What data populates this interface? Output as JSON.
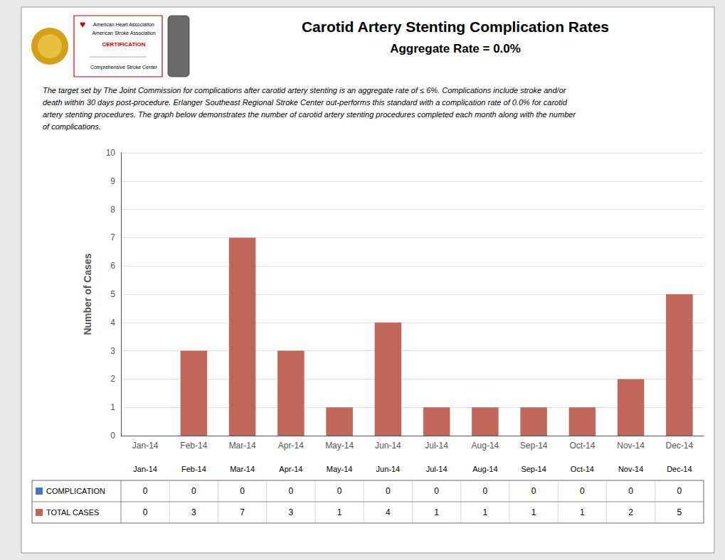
{
  "chart_data": {
    "type": "bar",
    "title": "Carotid Artery Stenting Complication Rates",
    "subtitle": "Aggregate Rate = 0.0%",
    "annotations": [
      "The target set by The Joint Commission for complications after carotid artery stenting is an aggregate rate of ≤ 6%. Complications include stroke and/or\ndeath within 30 days post-procedure. Erlanger Southeast Regional Stroke Center out-performs this standard with a complication rate of 0.0% for carotid\nartery stenting procedures. The graph below demonstrates the number of carotid artery stenting procedures completed each month along with the number\nof complications.",
      "♥",
      "American Heart Association",
      "American Stroke Association",
      "CERTIFICATION",
      "Comprehensive Stroke Center"
    ],
    "categories": [
      "Jan-14",
      "Feb-14",
      "Mar-14",
      "Apr-14",
      "May-14",
      "Jun-14",
      "Jul-14",
      "Aug-14",
      "Sep-14",
      "Oct-14",
      "Nov-14",
      "Dec-14"
    ],
    "values": [
      0,
      3,
      7,
      3,
      1,
      4,
      1,
      1,
      1,
      1,
      2,
      5
    ],
    "color": "#c0665a",
    "ylabel": "Number of Cases",
    "ylim": [
      0,
      10
    ],
    "yticks": [
      0,
      1,
      2,
      3,
      4,
      5,
      6,
      7,
      8,
      9,
      10
    ],
    "grid": true,
    "table": [
      {
        "name": "COMPLICATION",
        "color": "#4472c4",
        "values": [
          0,
          0,
          0,
          0,
          0,
          0,
          0,
          0,
          0,
          0,
          0,
          0
        ]
      },
      {
        "name": "TOTAL CASES",
        "color": "#c0665a",
        "values": [
          0,
          3,
          7,
          3,
          1,
          4,
          1,
          1,
          1,
          1,
          2,
          5
        ]
      }
    ]
  }
}
